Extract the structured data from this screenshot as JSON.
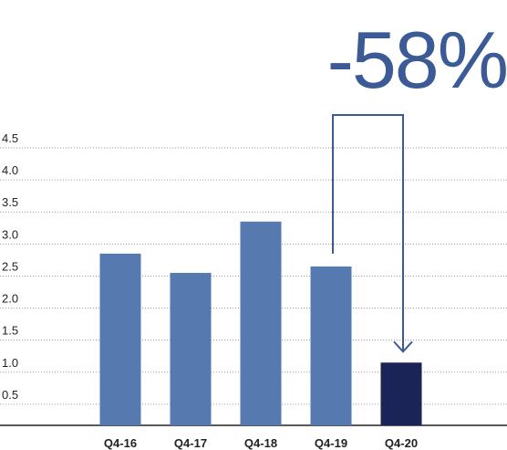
{
  "headline": "-58%",
  "chart_data": {
    "type": "bar",
    "categories": [
      "Q4-16",
      "Q4-17",
      "Q4-18",
      "Q4-19",
      "Q4-20"
    ],
    "values": [
      2.85,
      2.55,
      3.35,
      2.65,
      1.15
    ],
    "yticks": [
      "0.5",
      "1.0",
      "1.5",
      "2.0",
      "2.5",
      "3.0",
      "3.5",
      "4.0",
      "4.5"
    ],
    "ylim": [
      0,
      4.5
    ],
    "grid": true,
    "colors": {
      "bar": "#5679b0",
      "highlight": "#1b2456",
      "arrow": "#3c5b96",
      "headline": "#3c5b96"
    },
    "annotation": {
      "text": "-58%",
      "from_category": "Q4-19",
      "to_category": "Q4-20"
    }
  }
}
